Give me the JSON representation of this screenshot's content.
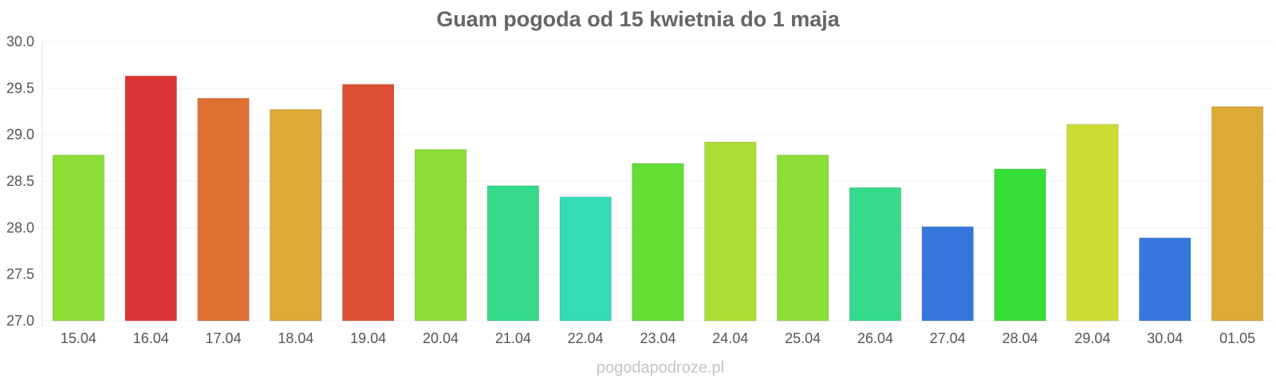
{
  "chart_data": {
    "type": "bar",
    "title": "Guam pogoda od 15 kwietnia do 1 maja",
    "xlabel": "",
    "ylabel": "",
    "categories": [
      "15.04",
      "16.04",
      "17.04",
      "18.04",
      "19.04",
      "20.04",
      "21.04",
      "22.04",
      "23.04",
      "24.04",
      "25.04",
      "26.04",
      "27.04",
      "28.04",
      "29.04",
      "30.04",
      "01.05"
    ],
    "values": [
      28.78,
      29.63,
      29.39,
      29.27,
      29.54,
      28.84,
      28.45,
      28.33,
      28.69,
      28.92,
      28.78,
      28.43,
      28.01,
      28.63,
      29.11,
      27.89,
      29.3
    ],
    "colors": [
      "#8ade35",
      "#dc3535",
      "#de7033",
      "#dcaa35",
      "#dd5035",
      "#8ade35",
      "#35da8a",
      "#35dab8",
      "#63de35",
      "#aade35",
      "#8ade35",
      "#35da8a",
      "#3577dc",
      "#35de35",
      "#ccdc35",
      "#3577dc",
      "#dcaa35"
    ],
    "ylim": [
      27.0,
      30.0
    ],
    "yticks": [
      "27.0",
      "27.5",
      "28.0",
      "28.5",
      "29.0",
      "29.5",
      "30.0"
    ],
    "grid": true,
    "legend": "none"
  },
  "watermark": "pogodapodroze.pl"
}
